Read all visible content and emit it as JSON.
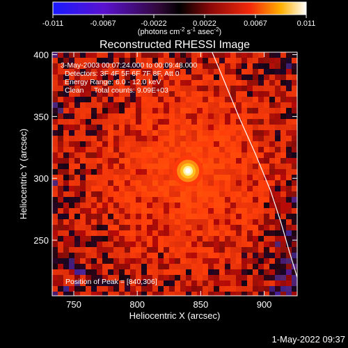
{
  "chart_data": {
    "type": "heatmap",
    "title": "Reconstructed RHESSI Image",
    "xlabel": "Heliocentric X (arcsec)",
    "ylabel": "Heliocentric Y (arcsec)",
    "x_ticks": [
      750,
      800,
      850,
      900
    ],
    "y_ticks": [
      250,
      300,
      350,
      400
    ],
    "xlim": [
      733,
      926
    ],
    "ylim": [
      205,
      402
    ],
    "colorbar": {
      "ticks": [
        "-0.011",
        "-0.0067",
        "-0.0022",
        "0.0022",
        "0.0067",
        "0.011"
      ],
      "min": -0.011,
      "max": 0.011,
      "unit_prefix": "(photons cm",
      "unit_exp1": "-2",
      "unit_mid": " s",
      "unit_exp2": "-1",
      "unit_mid2": " asec",
      "unit_exp3": "-2",
      "unit_suffix": ")"
    },
    "annotations": [
      "3-May-2003 00:07:24.000 to 00:09:48.000",
      "Detectors: 3F 4F 5F 6F 7F 8F, Att 0",
      "Energy Range: 6.0 - 12.0 keV",
      "Clean     Total counts: 9.09E+03"
    ],
    "peak_label": "Position of Peak = [840,306]",
    "peak": [
      840,
      306
    ],
    "limb_curve": [
      [
        859,
        402
      ],
      [
        868,
        380
      ],
      [
        880,
        350
      ],
      [
        893,
        320
      ],
      [
        905,
        290
      ],
      [
        913,
        265
      ],
      [
        920,
        240
      ],
      [
        926,
        220
      ]
    ]
  },
  "footer": {
    "timestamp": "1-May-2022 09:37"
  }
}
